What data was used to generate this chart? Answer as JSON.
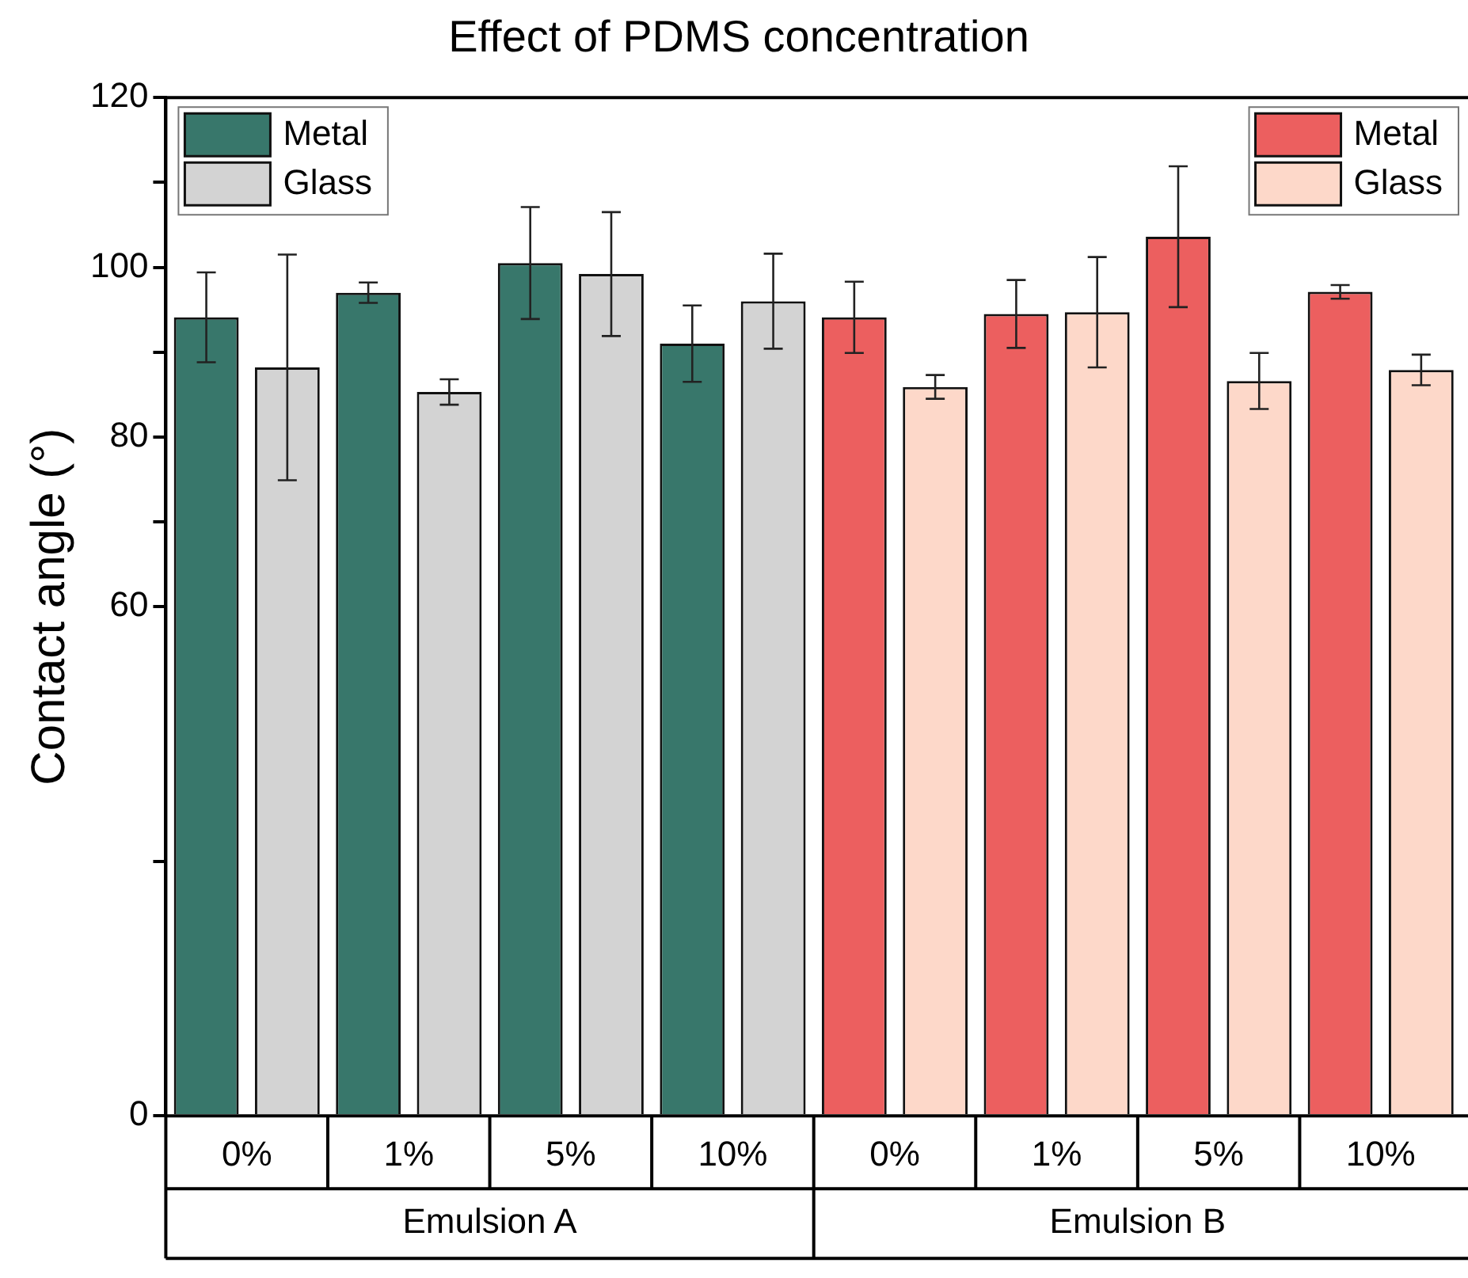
{
  "chart_data": {
    "type": "bar",
    "title": "Effect of PDMS concentration",
    "ylabel": "Contact angle (°)",
    "categories": [
      "0%",
      "1%",
      "5%",
      "10%",
      "0%",
      "1%",
      "5%",
      "10%"
    ],
    "annotations": [
      "Emulsion A",
      "Emulsion B"
    ],
    "series": [
      {
        "name": "Metal",
        "color": "#38776b",
        "values": [
          94.1,
          97.0,
          100.5,
          91.0,
          null,
          null,
          null,
          null
        ],
        "errors": [
          5.3,
          1.2,
          6.6,
          4.5,
          null,
          null,
          null,
          null
        ]
      },
      {
        "name": "Glass",
        "color": "#d3d3d3",
        "values": [
          88.2,
          85.3,
          99.2,
          96.0,
          null,
          null,
          null,
          null
        ],
        "errors": [
          13.3,
          1.5,
          7.3,
          5.6,
          null,
          null,
          null,
          null
        ]
      },
      {
        "name": "Metal",
        "color": "#ec5f5f",
        "values": [
          null,
          null,
          null,
          null,
          94.1,
          94.5,
          103.6,
          97.1
        ],
        "errors": [
          null,
          null,
          null,
          null,
          4.2,
          4.0,
          8.3,
          0.8
        ]
      },
      {
        "name": "Glass",
        "color": "#fdd8c9",
        "values": [
          null,
          null,
          null,
          null,
          85.9,
          94.7,
          86.6,
          87.9
        ],
        "errors": [
          null,
          null,
          null,
          null,
          1.4,
          6.5,
          3.3,
          1.8
        ]
      }
    ],
    "ylim": [
      0,
      120
    ],
    "yticks": [
      0,
      {
        "value": 30,
        "label": null
      },
      60,
      {
        "value": 70,
        "label": null
      },
      80,
      {
        "value": 90,
        "label": null
      },
      100,
      {
        "value": 110,
        "label": null
      },
      120
    ],
    "grid": false,
    "legend": "top"
  }
}
